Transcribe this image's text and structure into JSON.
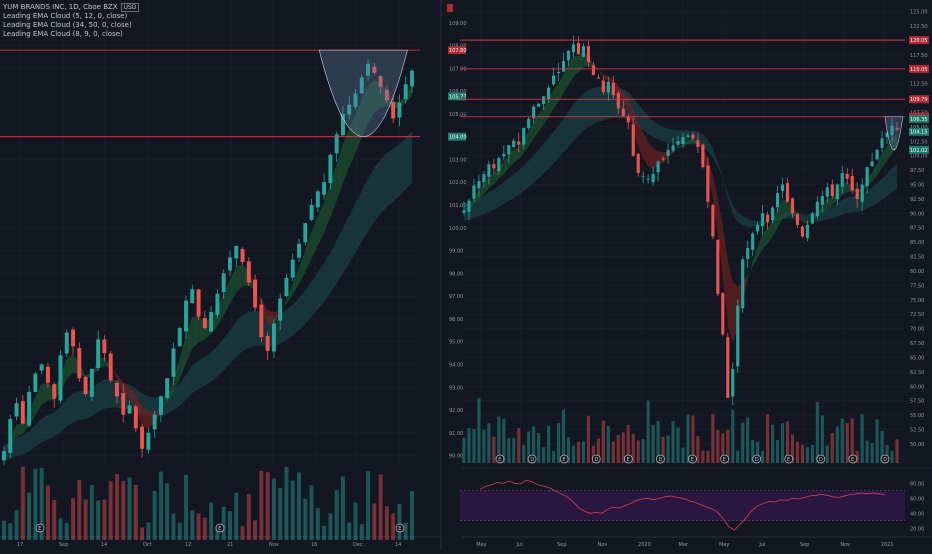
{
  "legend": {
    "symbol": "YUM BRANDS INC, 1D, Cboe BZX",
    "currency": "USD",
    "indicators": [
      "Leading EMA Cloud (5, 12, 0, close)",
      "Leading EMA Cloud (34, 50, 0, close)",
      "Leading EMA Cloud (8, 9, 0, close)"
    ]
  },
  "colors": {
    "background": "#131722",
    "up": "#26a69a",
    "down": "#ef5350",
    "level_line": "#f23645",
    "grid": "#1f2330",
    "rsi_band": "#2a1740",
    "rsi_line": "#e33b5a",
    "cup": "#5b7fa0",
    "cloud_slow": "#1b4d4f",
    "cloud_fast_up": "#1e5b32",
    "cloud_fast_down": "#7a2222"
  },
  "chart_data": [
    {
      "type": "candlestick",
      "panel": "left",
      "title": "YUM BRANDS INC, 1D, Cboe BZX",
      "ylim": [
        89.5,
        110
      ],
      "y_ticks": [
        "109.00",
        "108.00",
        "107.00",
        "106.00",
        "105.00",
        "104.00",
        "103.00",
        "102.00",
        "101.00",
        "100.00",
        "99.00",
        "98.00",
        "97.00",
        "96.00",
        "95.00",
        "94.00",
        "93.00",
        "92.00",
        "91.00",
        "90.00"
      ],
      "x_ticks": [
        "17",
        "Sep",
        "14",
        "Oct",
        "12",
        "21",
        "Nov",
        "16",
        "Dec",
        "14"
      ],
      "price_labels": [
        "107.80",
        "105.77",
        "104.00"
      ],
      "level_lines": [
        107.8,
        104.0
      ],
      "cup_pattern": {
        "x_start": "Nov 20",
        "x_end": "Dec 8",
        "top": 107.8,
        "bottom": 104.0
      },
      "event_markers": [
        "E",
        "E",
        "E"
      ],
      "close_path": [
        90.2,
        91.6,
        92.3,
        91.4,
        92.8,
        93.6,
        94.0,
        93.2,
        92.5,
        94.4,
        95.4,
        94.8,
        93.4,
        92.7,
        93.8,
        95.1,
        94.5,
        93.3,
        92.6,
        91.8,
        92.2,
        91.2,
        90.3,
        91.0,
        91.8,
        92.6,
        93.4,
        94.7,
        95.6,
        96.8,
        97.3,
        96.1,
        95.6,
        96.3,
        97.1,
        98.0,
        98.7,
        99.2,
        98.5,
        97.6,
        96.5,
        95.2,
        94.6,
        95.8,
        96.9,
        97.8,
        98.6,
        99.3,
        100.2,
        101.0,
        101.6,
        102.0,
        103.2,
        104.1,
        105.0,
        105.4,
        105.9,
        106.6,
        107.2,
        106.8,
        106.2,
        105.6,
        104.8,
        105.5,
        106.3,
        106.9
      ]
    },
    {
      "type": "candlestick",
      "panel": "right",
      "ylim": [
        46,
        127
      ],
      "y_ticks": [
        "125.00",
        "122.50",
        "120.00",
        "117.50",
        "115.00",
        "112.50",
        "110.00",
        "107.50",
        "105.00",
        "102.50",
        "100.00",
        "97.50",
        "95.00",
        "92.50",
        "90.00",
        "87.50",
        "85.00",
        "82.50",
        "80.00",
        "77.50",
        "75.00",
        "72.50",
        "70.00",
        "67.50",
        "65.00",
        "62.50",
        "60.00",
        "57.50",
        "55.00",
        "52.50",
        "50.00"
      ],
      "x_ticks": [
        "May",
        "Jul",
        "Sep",
        "Nov",
        "2020",
        "Mar",
        "May",
        "Jul",
        "Sep",
        "Nov",
        "2021"
      ],
      "price_labels": [
        "120.05",
        "115.05",
        "109.79",
        "106.75",
        "106.35",
        "104.15",
        "101.02"
      ],
      "level_lines": [
        120.05,
        115.05,
        109.79,
        106.75
      ],
      "cup_pattern": {
        "x_start": "Nov 2020",
        "x_end": "Dec 2020",
        "top": 106.75,
        "bottom": 101.0
      },
      "event_markers": [
        "E",
        "D",
        "E",
        "D",
        "E",
        "D",
        "E",
        "E",
        "D",
        "E",
        "D",
        "E",
        "D"
      ],
      "close_path": [
        90.5,
        92.2,
        94.8,
        95.6,
        96.8,
        98.5,
        97.8,
        99.6,
        100.3,
        101.8,
        102.6,
        101.9,
        104.8,
        106.4,
        108.5,
        109.0,
        110.3,
        111.8,
        113.9,
        114.5,
        116.4,
        118.2,
        119.3,
        117.6,
        119.0,
        116.2,
        114.0,
        113.5,
        111.0,
        112.8,
        110.5,
        108.2,
        106.9,
        105.8,
        100.0,
        97.0,
        96.5,
        96.0,
        96.8,
        99.0,
        99.5,
        101.0,
        101.8,
        102.5,
        103.2,
        103.5,
        103.0,
        101.5,
        98.0,
        92.0,
        86.0,
        76.0,
        69.0,
        58.0,
        63.0,
        74.0,
        82.0,
        84.0,
        86.5,
        88.0,
        90.0,
        88.5,
        91.0,
        93.5,
        95.0,
        92.0,
        90.0,
        88.0,
        86.0,
        88.0,
        90.0,
        92.0,
        93.0,
        94.5,
        93.0,
        95.0,
        97.0,
        96.0,
        94.0,
        92.5,
        95.0,
        98.0,
        99.0,
        101.0,
        103.0,
        104.0,
        105.2,
        104.5
      ]
    },
    {
      "type": "line",
      "panel": "right-rsi",
      "title": "",
      "ylim": [
        15,
        95
      ],
      "y_ticks": [
        "80.00",
        "60.00",
        "40.00",
        "20.00"
      ],
      "series": [
        {
          "values": [
            72,
            76,
            78,
            81,
            80,
            83,
            80,
            79,
            84,
            82,
            78,
            76,
            74,
            70,
            66,
            62,
            56,
            48,
            43,
            40,
            41,
            40,
            45,
            48,
            47,
            50,
            53,
            57,
            59,
            60,
            58,
            60,
            62,
            63,
            61,
            60,
            57,
            55,
            52,
            49,
            46,
            42,
            33,
            22,
            18,
            26,
            34,
            44,
            50,
            53,
            56,
            55,
            58,
            57,
            60,
            59,
            61,
            63,
            64,
            65,
            64,
            62,
            61,
            63,
            65,
            66,
            67,
            66,
            67,
            66,
            65
          ]
        }
      ]
    }
  ]
}
